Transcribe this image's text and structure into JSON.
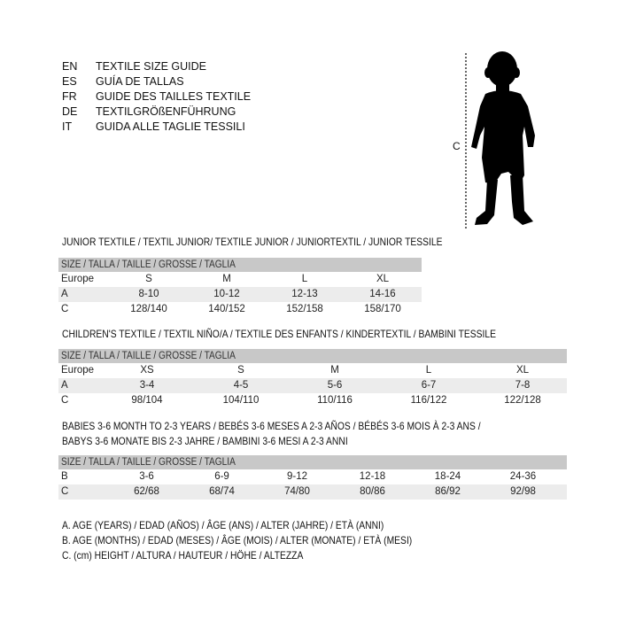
{
  "languages": [
    {
      "code": "EN",
      "title": "TEXTILE SIZE GUIDE"
    },
    {
      "code": "ES",
      "title": "GUÍA DE TALLAS"
    },
    {
      "code": "FR",
      "title": "GUIDE DES TAILLES TEXTILE"
    },
    {
      "code": "DE",
      "title": "TEXTILGRÖßENFÜHRUNG"
    },
    {
      "code": "IT",
      "title": "GUIDA ALLE TAGLIE TESSILI"
    }
  ],
  "figure": {
    "height_marker": "C",
    "icon": "child-silhouette-icon"
  },
  "size_header": "SIZE / TALLA / TAILLE / GRÖSSE / TAGLIA",
  "junior": {
    "title": "JUNIOR TEXTILE / TEXTIL JUNIOR/ TEXTILE JUNIOR / JUNIORTEXTIL / JUNIOR TESSILE",
    "rows": [
      {
        "label": "Europe",
        "cells": [
          "S",
          "M",
          "L",
          "XL"
        ]
      },
      {
        "label": "A",
        "cells": [
          "8-10",
          "10-12",
          "12-13",
          "14-16"
        ]
      },
      {
        "label": "C",
        "cells": [
          "128/140",
          "140/152",
          "152/158",
          "158/170"
        ]
      }
    ]
  },
  "children": {
    "title": "CHILDREN'S TEXTILE / TEXTIL NIÑO/A / TEXTILE DES ENFANTS / KINDERTEXTIL / BAMBINI TESSILE",
    "rows": [
      {
        "label": "Europe",
        "cells": [
          "XS",
          "S",
          "M",
          "L",
          "XL"
        ]
      },
      {
        "label": "A",
        "cells": [
          "3-4",
          "4-5",
          "5-6",
          "6-7",
          "7-8"
        ]
      },
      {
        "label": "C",
        "cells": [
          "98/104",
          "104/110",
          "110/116",
          "116/122",
          "122/128"
        ]
      }
    ]
  },
  "babies": {
    "title_line1": "BABIES 3-6 MONTH TO 2-3 YEARS / BEBÉS 3-6 MESES A 2-3 AÑOS / BÉBÉS 3-6 MOIS À 2-3 ANS /",
    "title_line2": "BABYS 3-6 MONATE BIS 2-3 JAHRE / BAMBINI 3-6 MESI A 2-3 ANNI",
    "rows": [
      {
        "label": "B",
        "cells": [
          "3-6",
          "6-9",
          "9-12",
          "12-18",
          "18-24",
          "24-36"
        ]
      },
      {
        "label": "C",
        "cells": [
          "62/68",
          "68/74",
          "74/80",
          "80/86",
          "86/92",
          "92/98"
        ]
      }
    ]
  },
  "legend": [
    "A. AGE (YEARS) / EDAD (AÑOS) / ÂGE (ANS) / ALTER (JAHRE) / ETÀ (ANNI)",
    "B. AGE (MONTHS) / EDAD (MESES) / ÂGE (MOIS) / ALTER (MONATE) / ETÀ (MESI)",
    "C. (cm) HEIGHT / ALTURA / HAUTEUR / HÖHE / ALTEZZA"
  ],
  "colors": {
    "header_bar": "#c8c8c8",
    "shaded_row": "#ececec"
  }
}
